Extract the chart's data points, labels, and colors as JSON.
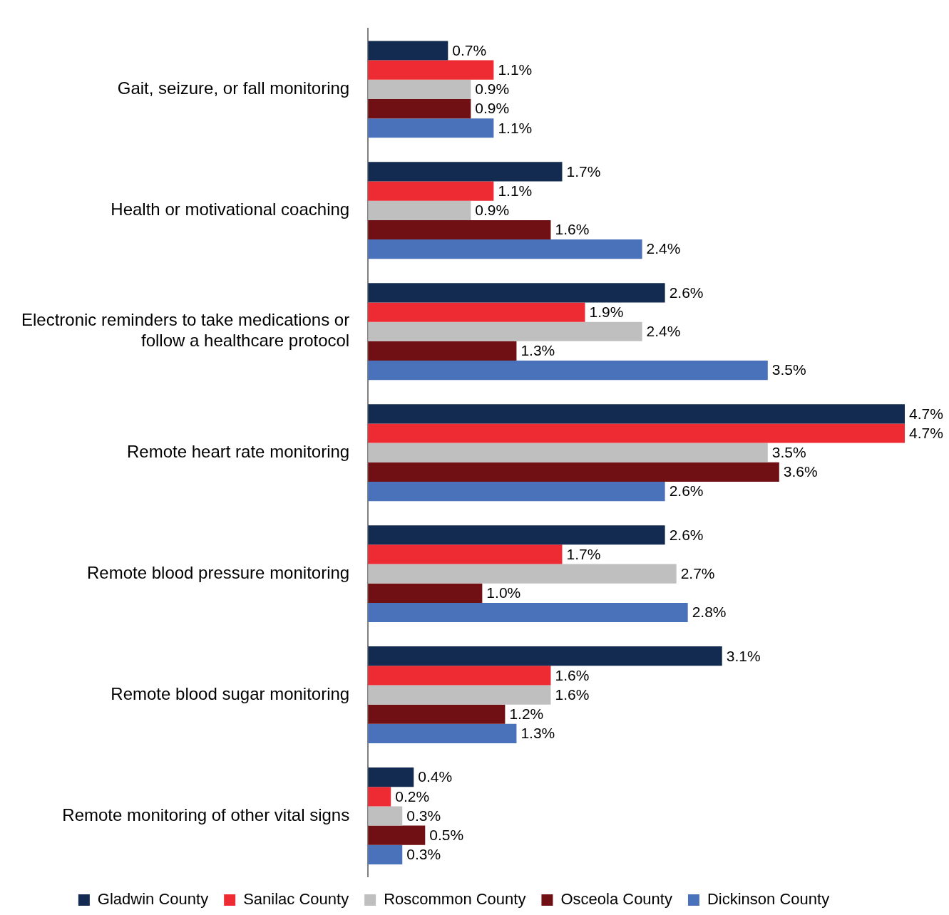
{
  "chart_data": {
    "type": "bar",
    "orientation": "horizontal",
    "tick_labels": "y",
    "legend": "bottom",
    "categories": [
      "Gait, seizure, or fall monitoring",
      "Health or motivational coaching",
      "Electronic reminders to take medications or follow a healthcare protocol",
      "Remote heart rate monitoring",
      "Remote blood pressure monitoring",
      "Remote blood sugar monitoring",
      "Remote monitoring of other vital signs"
    ],
    "series": [
      {
        "name": "Gladwin County",
        "color": "#132b50",
        "values": [
          0.7,
          1.7,
          2.6,
          4.7,
          2.6,
          3.1,
          0.4
        ],
        "value_labels": [
          "0.7%",
          "1.7%",
          "2.6%",
          "4.7%",
          "2.6%",
          "3.1%",
          "0.4%"
        ]
      },
      {
        "name": "Sanilac County",
        "color": "#ee2a32",
        "values": [
          1.1,
          1.1,
          1.9,
          4.7,
          1.7,
          1.6,
          0.2
        ],
        "value_labels": [
          "1.1%",
          "1.1%",
          "1.9%",
          "4.7%",
          "1.7%",
          "1.6%",
          "0.2%"
        ]
      },
      {
        "name": "Roscommon County",
        "color": "#bfbfbf",
        "values": [
          0.9,
          0.9,
          2.4,
          3.5,
          2.7,
          1.6,
          0.3
        ],
        "value_labels": [
          "0.9%",
          "0.9%",
          "2.4%",
          "3.5%",
          "2.7%",
          "1.6%",
          "0.3%"
        ]
      },
      {
        "name": "Osceola County",
        "color": "#701014",
        "values": [
          0.9,
          1.6,
          1.3,
          3.6,
          1.0,
          1.2,
          0.5
        ],
        "value_labels": [
          "0.9%",
          "1.6%",
          "1.3%",
          "3.6%",
          "1.0%",
          "1.2%",
          "0.5%"
        ]
      },
      {
        "name": "Dickinson County",
        "color": "#4a72ba",
        "values": [
          1.1,
          2.4,
          3.5,
          2.6,
          2.8,
          1.3,
          0.3
        ],
        "value_labels": [
          "1.1%",
          "2.4%",
          "3.5%",
          "2.6%",
          "2.8%",
          "1.3%",
          "0.3%"
        ]
      }
    ]
  }
}
